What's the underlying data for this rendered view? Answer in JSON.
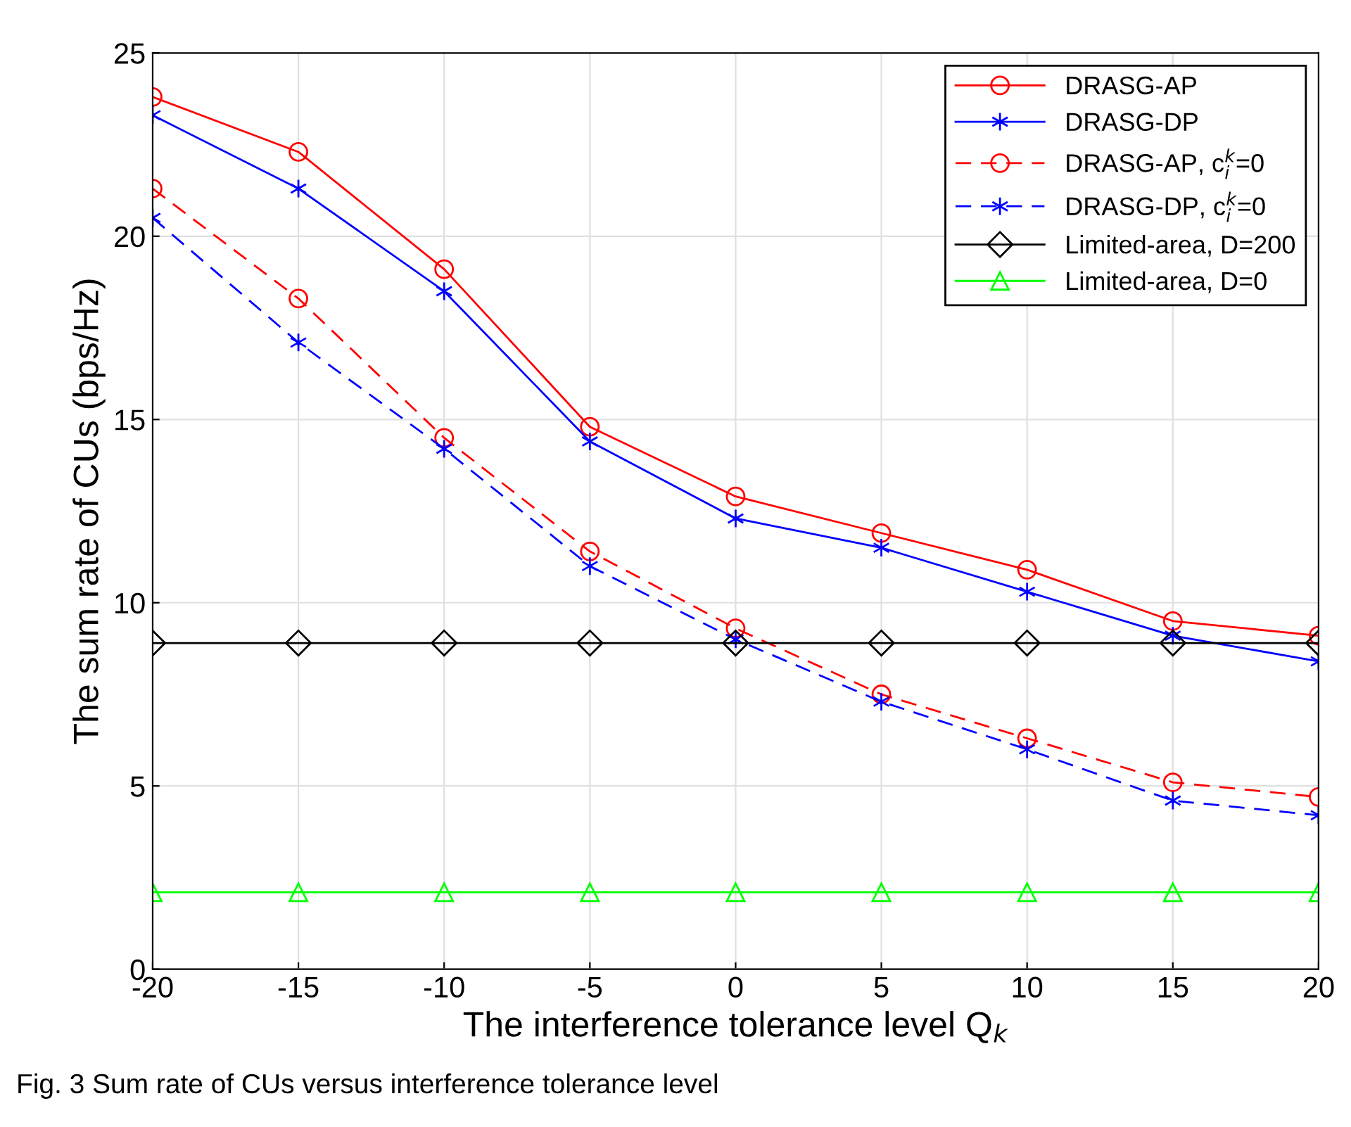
{
  "chart_data": {
    "type": "line",
    "xlabel": "The interference tolerance level Q$_{k}$",
    "ylabel": "The sum rate of CUs (bps/Hz)",
    "x": [
      -20,
      -15,
      -10,
      -5,
      0,
      5,
      10,
      15,
      20
    ],
    "series": [
      {
        "name": "DRASG-AP",
        "color": "#ff0000",
        "marker": "circle",
        "line_style": "solid",
        "values": [
          23.8,
          22.3,
          19.1,
          14.8,
          12.9,
          11.9,
          10.9,
          9.5,
          9.1
        ]
      },
      {
        "name": "DRASG-DP",
        "color": "#0000ff",
        "marker": "cross",
        "line_style": "solid",
        "values": [
          23.3,
          21.3,
          18.5,
          14.4,
          12.3,
          11.5,
          10.3,
          9.1,
          8.4
        ]
      },
      {
        "name": "DRASG-AP, c$^{k}$$_{i}$=0",
        "color": "#ff0000",
        "marker": "circle",
        "line_style": "dashed",
        "values": [
          21.3,
          18.3,
          14.5,
          11.4,
          9.3,
          7.5,
          6.3,
          5.1,
          4.7
        ]
      },
      {
        "name": "DRASG-DP, c$^{k}$$_{i}$=0",
        "color": "#0000ff",
        "marker": "cross",
        "line_style": "dashed",
        "values": [
          20.5,
          17.1,
          14.2,
          11.0,
          9.0,
          7.3,
          6.0,
          4.6,
          4.2
        ]
      },
      {
        "name": "Limited-area, D=200",
        "color": "#000000",
        "marker": "diamond",
        "line_style": "solid",
        "values": [
          8.9,
          8.9,
          8.9,
          8.9,
          8.9,
          8.9,
          8.9,
          8.9,
          8.9
        ]
      },
      {
        "name": "Limited-area, D=0",
        "color": "#00ff00",
        "marker": "triangle",
        "line_style": "solid",
        "values": [
          2.1,
          2.1,
          2.1,
          2.1,
          2.1,
          2.1,
          2.1,
          2.1,
          2.1
        ]
      }
    ],
    "xlim": [
      -20,
      20
    ],
    "xticks": [
      -20,
      -15,
      -10,
      -5,
      0,
      5,
      10,
      15,
      20
    ],
    "ylim": [
      0,
      25
    ],
    "yticks": [
      0,
      5,
      10,
      15,
      20,
      25
    ],
    "grid": true,
    "legend": "top right",
    "annotations": [
      "Fig. 3 Sum rate of CUs versus interference tolerance level"
    ]
  }
}
